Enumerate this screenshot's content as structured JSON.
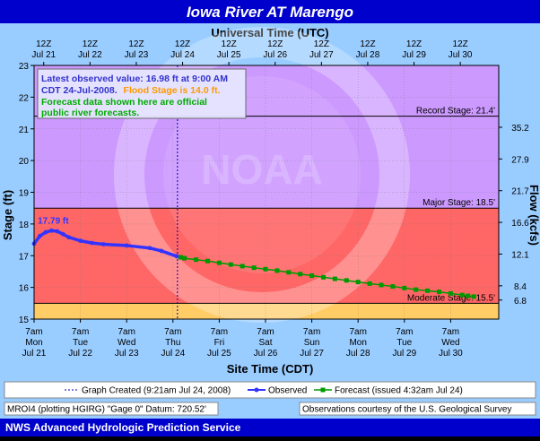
{
  "title": "Iowa River  AT Marengo",
  "top_axis_title": "Universal Time (UTC)",
  "bottom_axis_title": "Site Time (CDT)",
  "y_left_label": "Stage (ft)",
  "y_right_label": "Flow (kcfs)",
  "info_box": {
    "line1": "Latest observed value: 16.98 ft at 9:00 AM",
    "line2_black": "CDT 24-Jul-2008.",
    "line2_orange": "Flood Stage is 14.0 ft.",
    "line3": "Forecast data shown here are official",
    "line4": "public river forecasts."
  },
  "legend": {
    "graph_created": "Graph Created (9:21am Jul 24, 2008)",
    "observed": "Observed",
    "forecast": "Forecast (issued 4:32am Jul 24)"
  },
  "footer_left": "MROI4 (plotting HGIRG)  \"Gage 0\" Datum: 720.52'",
  "footer_right": "Observations courtesy of the  U.S. Geological Survey",
  "bottom_bar": "NWS Advanced Hydrologic Prediction Service",
  "colors": {
    "record_band": "#cc99ff",
    "major_band": "#cc99ff",
    "moderate_band": "#ff6666",
    "minor_band": "#ffcc66",
    "observed": "#3333ff",
    "forecast": "#009900",
    "frame_bg": "#99ccff",
    "title_bar": "#0000cc"
  },
  "chart_data": {
    "type": "line",
    "title": "Iowa River  AT Marengo",
    "xlabel": "Site Time (CDT)",
    "ylabel": "Stage (ft)",
    "y2label": "Flow (kcfs)",
    "ylim": [
      15,
      23
    ],
    "yticks": [
      15,
      16,
      17,
      18,
      19,
      20,
      21,
      22,
      23
    ],
    "y2ticks": [
      {
        "stage": 15.6,
        "label": "6.8"
      },
      {
        "stage": 16.05,
        "label": "8.4"
      },
      {
        "stage": 17.05,
        "label": "12.1"
      },
      {
        "stage": 18.05,
        "label": "16.6"
      },
      {
        "stage": 19.05,
        "label": "21.7"
      },
      {
        "stage": 20.05,
        "label": "27.9"
      },
      {
        "stage": 21.05,
        "label": "35.2"
      }
    ],
    "top_ticks": [
      [
        "12Z",
        "Jul 21"
      ],
      [
        "12Z",
        "Jul 22"
      ],
      [
        "12Z",
        "Jul 23"
      ],
      [
        "12Z",
        "Jul 24"
      ],
      [
        "12Z",
        "Jul 25"
      ],
      [
        "12Z",
        "Jul 26"
      ],
      [
        "12Z",
        "Jul 27"
      ],
      [
        "12Z",
        "Jul 28"
      ],
      [
        "12Z",
        "Jul 29"
      ],
      [
        "12Z",
        "Jul 30"
      ]
    ],
    "bottom_ticks": [
      [
        "7am",
        "Mon",
        "Jul 21"
      ],
      [
        "7am",
        "Tue",
        "Jul 22"
      ],
      [
        "7am",
        "Wed",
        "Jul 23"
      ],
      [
        "7am",
        "Thu",
        "Jul 24"
      ],
      [
        "7am",
        "Fri",
        "Jul 25"
      ],
      [
        "7am",
        "Sat",
        "Jul 26"
      ],
      [
        "7am",
        "Sun",
        "Jul 27"
      ],
      [
        "7am",
        "Mon",
        "Jul 28"
      ],
      [
        "7am",
        "Tue",
        "Jul 29"
      ],
      [
        "7am",
        "Wed",
        "Jul 30"
      ]
    ],
    "flood_categories": [
      {
        "name": "Record Stage: 21.4'",
        "stage": 21.4
      },
      {
        "name": "Major Stage: 18.5'",
        "stage": 18.5
      },
      {
        "name": "Moderate Stage: 15.5'",
        "stage": 15.5
      }
    ],
    "flood_stage": 14.0,
    "graph_created": "Jul 24 9:21am",
    "peak_label": "17.79 ft",
    "series": [
      {
        "name": "Observed",
        "x": [
          "Jul 21 07:00",
          "Jul 21 10:00",
          "Jul 21 13:00",
          "Jul 21 16:00",
          "Jul 21 19:00",
          "Jul 21 22:00",
          "Jul 22 01:00",
          "Jul 22 07:00",
          "Jul 22 13:00",
          "Jul 22 19:00",
          "Jul 23 07:00",
          "Jul 23 19:00",
          "Jul 24 01:00",
          "Jul 24 09:00"
        ],
        "values": [
          17.38,
          17.62,
          17.74,
          17.79,
          17.77,
          17.68,
          17.58,
          17.47,
          17.4,
          17.36,
          17.32,
          17.24,
          17.15,
          16.98
        ]
      },
      {
        "name": "Forecast",
        "x": [
          "Jul 24 13:00",
          "Jul 25 01:00",
          "Jul 25 13:00",
          "Jul 26 01:00",
          "Jul 26 13:00",
          "Jul 27 01:00",
          "Jul 27 13:00",
          "Jul 28 01:00",
          "Jul 28 13:00",
          "Jul 29 01:00",
          "Jul 29 13:00",
          "Jul 30 01:00",
          "Jul 30 13:00",
          "Jul 30 19:00"
        ],
        "values": [
          16.92,
          16.83,
          16.72,
          16.62,
          16.53,
          16.42,
          16.32,
          16.22,
          16.12,
          16.03,
          15.93,
          15.86,
          15.76,
          15.71
        ]
      }
    ]
  }
}
